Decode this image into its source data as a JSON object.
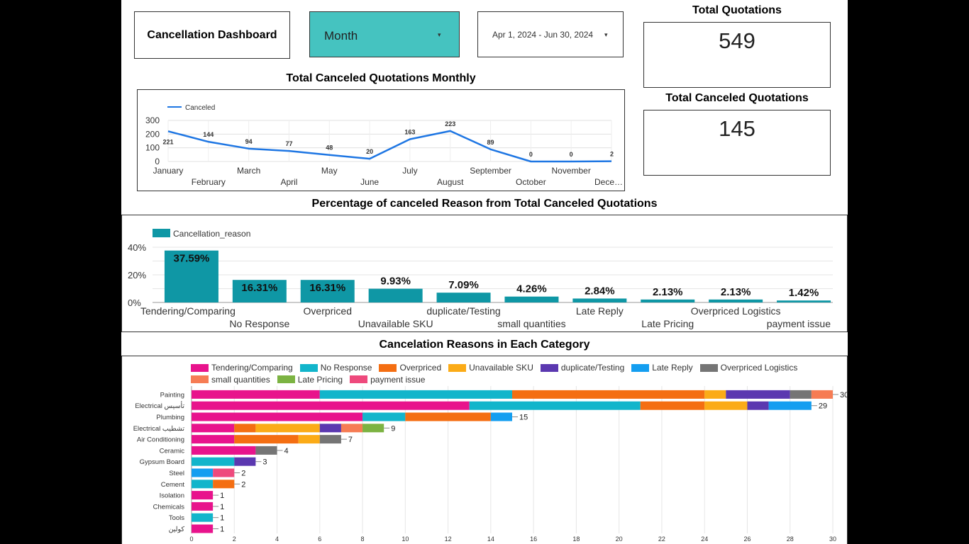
{
  "header": {
    "dashboard_title": "Cancellation Dashboard",
    "month_filter_label": "Month",
    "date_range_label": "Apr 1, 2024 - Jun 30, 2024",
    "dropdown_caret": "▾"
  },
  "kpis": {
    "total_quotations_title": "Total Quotations",
    "total_quotations_value": "549",
    "total_canceled_title": "Total Canceled Quotations",
    "total_canceled_value": "145"
  },
  "colors": {
    "line": "#1e76e3",
    "bar": "#0f97a5",
    "categories": [
      "#e8138c",
      "#12b5cb",
      "#f46e12",
      "#fbab17",
      "#5b38b0",
      "#149ef0",
      "#757575",
      "#f67c54",
      "#7cb342",
      "#ee4a7d"
    ]
  },
  "chart_data": [
    {
      "type": "line",
      "title": "Total Canceled Quotations Monthly",
      "series": [
        {
          "name": "Canceled",
          "values": [
            221,
            144,
            94,
            77,
            48,
            20,
            163,
            223,
            89,
            0,
            0,
            2
          ]
        }
      ],
      "categories": [
        "January",
        "February",
        "March",
        "April",
        "May",
        "June",
        "July",
        "August",
        "September",
        "October",
        "November",
        "December"
      ],
      "category_labels_shown": [
        "January",
        "February",
        "March",
        "April",
        "May",
        "June",
        "July",
        "August",
        "September",
        "October",
        "November",
        "Dece…"
      ],
      "yticks": [
        "0",
        "100",
        "200",
        "300"
      ],
      "ylim": [
        0,
        300
      ]
    },
    {
      "type": "bar",
      "title": "Percentage of canceled Reason from Total Canceled Quotations",
      "legend": "Cancellation_reason",
      "categories": [
        "Tendering/Comparing",
        "No Response",
        "Overpriced",
        "Unavailable SKU",
        "duplicate/Testing",
        "small quantities",
        "Late Reply",
        "Late Pricing",
        "Overpriced Logistics",
        "payment issue"
      ],
      "values": [
        37.59,
        16.31,
        16.31,
        9.93,
        7.09,
        4.26,
        2.84,
        2.13,
        2.13,
        1.42
      ],
      "value_labels": [
        "37.59%",
        "16.31%",
        "16.31%",
        "9.93%",
        "7.09%",
        "4.26%",
        "2.84%",
        "2.13%",
        "2.13%",
        "1.42%"
      ],
      "yticks": [
        "0%",
        "20%",
        "40%"
      ],
      "ylim": [
        0,
        40
      ]
    },
    {
      "type": "bar",
      "orientation": "horizontal",
      "stacked": true,
      "title": "Cancelation Reasons in Each Category",
      "reasons": [
        "Tendering/Comparing",
        "No Response",
        "Overpriced",
        "Unavailable SKU",
        "duplicate/Testing",
        "Late Reply",
        "Overpriced Logistics",
        "small quantities",
        "Late Pricing",
        "payment issue"
      ],
      "categories": [
        "Painting",
        "Electrical تأسيس",
        "Plumbing",
        "Electrical تشطيب",
        "Air Conditioning",
        "Ceramic",
        "Gypsum Board",
        "Steel",
        "Cement",
        "Isolation",
        "Chemicals",
        "Tools",
        "كولين"
      ],
      "segments": [
        [
          [
            0,
            6
          ],
          [
            1,
            9
          ],
          [
            2,
            9
          ],
          [
            3,
            1
          ],
          [
            4,
            3
          ],
          [
            6,
            1
          ],
          [
            7,
            1
          ]
        ],
        [
          [
            0,
            13
          ],
          [
            1,
            8
          ],
          [
            2,
            3
          ],
          [
            3,
            2
          ],
          [
            4,
            1
          ],
          [
            5,
            2
          ]
        ],
        [
          [
            0,
            8
          ],
          [
            1,
            2
          ],
          [
            2,
            4
          ],
          [
            5,
            1
          ]
        ],
        [
          [
            0,
            2
          ],
          [
            2,
            1
          ],
          [
            3,
            3
          ],
          [
            4,
            1
          ],
          [
            7,
            1
          ],
          [
            8,
            1
          ]
        ],
        [
          [
            0,
            2
          ],
          [
            2,
            3
          ],
          [
            3,
            1
          ],
          [
            6,
            1
          ]
        ],
        [
          [
            0,
            3
          ],
          [
            6,
            1
          ]
        ],
        [
          [
            1,
            2
          ],
          [
            4,
            1
          ]
        ],
        [
          [
            5,
            1
          ],
          [
            9,
            1
          ]
        ],
        [
          [
            1,
            1
          ],
          [
            2,
            1
          ]
        ],
        [
          [
            0,
            1
          ]
        ],
        [
          [
            0,
            1
          ]
        ],
        [
          [
            1,
            1
          ]
        ],
        [
          [
            0,
            1
          ]
        ]
      ],
      "totals": [
        30,
        29,
        15,
        9,
        7,
        4,
        3,
        2,
        2,
        1,
        1,
        1,
        1
      ],
      "xticks": [
        0,
        2,
        4,
        6,
        8,
        10,
        12,
        14,
        16,
        18,
        20,
        22,
        24,
        26,
        28,
        30
      ],
      "xlim": [
        0,
        30
      ]
    }
  ]
}
